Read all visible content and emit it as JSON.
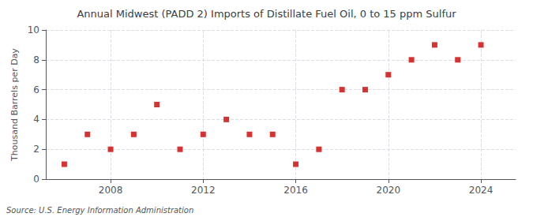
{
  "chart_data": {
    "type": "scatter",
    "title": "Annual Midwest (PADD 2) Imports of Distillate Fuel Oil, 0 to 15 ppm Sulfur",
    "ylabel": "Thousand Barrels per Day",
    "annotation": "Source: U.S. Energy Information Administration",
    "x": [
      2006,
      2007,
      2008,
      2009,
      2010,
      2011,
      2012,
      2013,
      2014,
      2015,
      2016,
      2017,
      2018,
      2019,
      2020,
      2021,
      2022,
      2023,
      2024
    ],
    "values": [
      1,
      3,
      2,
      3,
      5,
      2,
      3,
      4,
      3,
      3,
      1,
      2,
      6,
      6,
      7,
      8,
      9,
      8,
      9
    ],
    "xlim": [
      2005.2,
      2025.5
    ],
    "xticks": [
      2008,
      2012,
      2016,
      2020,
      2024
    ],
    "ylim": [
      0,
      10
    ],
    "yticks": [
      0,
      2,
      4,
      6,
      8,
      10
    ],
    "color": "#cc0000",
    "marker": "square",
    "grid": true
  }
}
